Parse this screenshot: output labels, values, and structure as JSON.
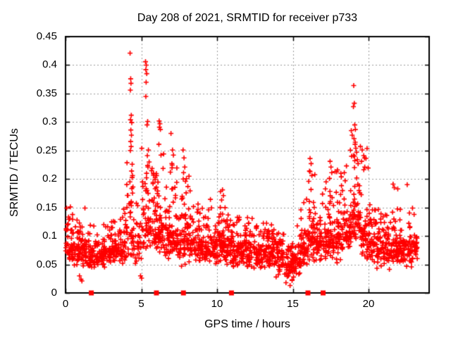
{
  "chart_data": {
    "type": "scatter",
    "title": "Day 208 of 2021, SRMTID for receiver p733",
    "xlabel": "GPS time / hours",
    "ylabel": "SRMTID / TECUs",
    "xlim": [
      0,
      24
    ],
    "ylim": [
      0,
      0.45
    ],
    "xticks": [
      0,
      5,
      10,
      15,
      20
    ],
    "xtick_labels": [
      "0",
      "5",
      "10",
      "15",
      "20"
    ],
    "yticks": [
      0,
      0.05,
      0.1,
      0.15,
      0.2,
      0.25,
      0.3,
      0.35,
      0.4,
      0.45
    ],
    "ytick_labels": [
      "0",
      "0.05",
      "0.1",
      "0.15",
      "0.2",
      "0.25",
      "0.3",
      "0.35",
      "0.4",
      "0.45"
    ],
    "grid": true,
    "grid_color": "#9a9a9a",
    "marker": {
      "shape": "plus",
      "color": "#ff0000",
      "size": 7
    },
    "zero_markers": {
      "shape": "filled-square",
      "color": "#ff0000",
      "y": 0,
      "x": [
        1.7,
        6.0,
        7.78,
        10.95,
        16.0,
        17.0
      ]
    },
    "seed": 20210727,
    "density_bins": [
      [
        0.0,
        45,
        0.04,
        0.11,
        0.152
      ],
      [
        0.5,
        45,
        0.045,
        0.105,
        0.13
      ],
      [
        1.0,
        40,
        0.045,
        0.1,
        0.15
      ],
      [
        1.5,
        40,
        0.04,
        0.09,
        0.12
      ],
      [
        2.0,
        40,
        0.04,
        0.085,
        0.11
      ],
      [
        2.5,
        42,
        0.045,
        0.09,
        0.12
      ],
      [
        3.0,
        42,
        0.05,
        0.1,
        0.13
      ],
      [
        3.5,
        40,
        0.05,
        0.105,
        0.15
      ],
      [
        4.0,
        42,
        0.055,
        0.15,
        0.24
      ],
      [
        4.5,
        30,
        0.05,
        0.12,
        0.18
      ],
      [
        5.0,
        40,
        0.065,
        0.16,
        0.27
      ],
      [
        5.5,
        45,
        0.07,
        0.16,
        0.24
      ],
      [
        6.0,
        48,
        0.05,
        0.15,
        0.25
      ],
      [
        6.5,
        48,
        0.05,
        0.14,
        0.2
      ],
      [
        7.0,
        48,
        0.05,
        0.14,
        0.23
      ],
      [
        7.5,
        45,
        0.045,
        0.13,
        0.22
      ],
      [
        8.0,
        45,
        0.05,
        0.12,
        0.19
      ],
      [
        8.5,
        42,
        0.05,
        0.11,
        0.16
      ],
      [
        9.0,
        45,
        0.05,
        0.11,
        0.15
      ],
      [
        9.5,
        45,
        0.045,
        0.11,
        0.17
      ],
      [
        10.0,
        48,
        0.05,
        0.12,
        0.18
      ],
      [
        10.5,
        45,
        0.045,
        0.11,
        0.15
      ],
      [
        11.0,
        45,
        0.04,
        0.1,
        0.14
      ],
      [
        11.5,
        45,
        0.045,
        0.1,
        0.13
      ],
      [
        12.0,
        45,
        0.04,
        0.1,
        0.14
      ],
      [
        12.5,
        45,
        0.04,
        0.095,
        0.12
      ],
      [
        13.0,
        45,
        0.04,
        0.095,
        0.13
      ],
      [
        13.5,
        45,
        0.035,
        0.09,
        0.12
      ],
      [
        14.0,
        45,
        0.03,
        0.085,
        0.11
      ],
      [
        14.5,
        45,
        0.02,
        0.075,
        0.1
      ],
      [
        15.0,
        45,
        0.03,
        0.08,
        0.12
      ],
      [
        15.5,
        45,
        0.04,
        0.1,
        0.17
      ],
      [
        16.0,
        48,
        0.05,
        0.13,
        0.22
      ],
      [
        16.5,
        45,
        0.05,
        0.12,
        0.18
      ],
      [
        17.0,
        45,
        0.05,
        0.13,
        0.2
      ],
      [
        17.5,
        45,
        0.05,
        0.14,
        0.22
      ],
      [
        18.0,
        45,
        0.055,
        0.14,
        0.21
      ],
      [
        18.5,
        45,
        0.065,
        0.155,
        0.26
      ],
      [
        19.0,
        48,
        0.06,
        0.17,
        0.29
      ],
      [
        19.5,
        45,
        0.05,
        0.14,
        0.255
      ],
      [
        20.0,
        45,
        0.05,
        0.12,
        0.18
      ],
      [
        20.5,
        45,
        0.04,
        0.11,
        0.15
      ],
      [
        21.0,
        42,
        0.04,
        0.1,
        0.14
      ],
      [
        21.5,
        42,
        0.04,
        0.11,
        0.185
      ],
      [
        22.0,
        42,
        0.045,
        0.11,
        0.15
      ],
      [
        22.5,
        40,
        0.04,
        0.105,
        0.15
      ],
      [
        23.0,
        20,
        0.05,
        0.105,
        0.14,
        0.25
      ]
    ],
    "outliers": [
      [
        4.26,
        0.421
      ],
      [
        4.3,
        0.376
      ],
      [
        4.32,
        0.368
      ],
      [
        4.28,
        0.356
      ],
      [
        4.34,
        0.312
      ],
      [
        4.29,
        0.304
      ],
      [
        4.37,
        0.299
      ],
      [
        4.31,
        0.286
      ],
      [
        4.35,
        0.277
      ],
      [
        4.3,
        0.266
      ],
      [
        4.33,
        0.257
      ],
      [
        4.28,
        0.25
      ],
      [
        4.4,
        0.226
      ],
      [
        4.36,
        0.214
      ],
      [
        4.42,
        0.206
      ],
      [
        4.25,
        0.195
      ],
      [
        4.45,
        0.186
      ],
      [
        5.28,
        0.406
      ],
      [
        5.33,
        0.4
      ],
      [
        5.3,
        0.392
      ],
      [
        5.36,
        0.385
      ],
      [
        5.32,
        0.37
      ],
      [
        5.3,
        0.345
      ],
      [
        5.42,
        0.301
      ],
      [
        5.38,
        0.295
      ],
      [
        5.47,
        0.251
      ],
      [
        5.4,
        0.241
      ],
      [
        5.52,
        0.23
      ],
      [
        5.44,
        0.221
      ],
      [
        5.35,
        0.21
      ],
      [
        6.18,
        0.302
      ],
      [
        6.23,
        0.297
      ],
      [
        6.2,
        0.291
      ],
      [
        6.26,
        0.287
      ],
      [
        6.16,
        0.261
      ],
      [
        6.3,
        0.242
      ],
      [
        6.96,
        0.28
      ],
      [
        7.06,
        0.251
      ],
      [
        7.12,
        0.242
      ],
      [
        7.02,
        0.227
      ],
      [
        6.92,
        0.212
      ],
      [
        7.76,
        0.251
      ],
      [
        7.82,
        0.237
      ],
      [
        7.87,
        0.221
      ],
      [
        7.79,
        0.211
      ],
      [
        7.92,
        0.196
      ],
      [
        8.15,
        0.205
      ],
      [
        10.36,
        0.181
      ],
      [
        10.42,
        0.171
      ],
      [
        16.14,
        0.236
      ],
      [
        16.21,
        0.227
      ],
      [
        16.1,
        0.214
      ],
      [
        16.26,
        0.206
      ],
      [
        16.05,
        0.196
      ],
      [
        17.46,
        0.231
      ],
      [
        17.52,
        0.221
      ],
      [
        17.57,
        0.211
      ],
      [
        17.42,
        0.201
      ],
      [
        18.4,
        0.211
      ],
      [
        18.46,
        0.197
      ],
      [
        18.86,
        0.285
      ],
      [
        18.92,
        0.277
      ],
      [
        18.88,
        0.24
      ],
      [
        19.02,
        0.364
      ],
      [
        19.06,
        0.333
      ],
      [
        19.0,
        0.327
      ],
      [
        19.09,
        0.295
      ],
      [
        19.13,
        0.287
      ],
      [
        19.04,
        0.271
      ],
      [
        19.11,
        0.261
      ],
      [
        19.16,
        0.254
      ],
      [
        19.21,
        0.247
      ],
      [
        19.0,
        0.241
      ],
      [
        19.26,
        0.234
      ],
      [
        19.31,
        0.227
      ],
      [
        19.07,
        0.22
      ],
      [
        19.58,
        0.251
      ],
      [
        19.68,
        0.241
      ],
      [
        19.54,
        0.231
      ],
      [
        19.75,
        0.221
      ],
      [
        21.62,
        0.191
      ],
      [
        22.55,
        0.19
      ],
      [
        0.32,
        0.151
      ],
      [
        1.28,
        0.149
      ],
      [
        0.92,
        0.03
      ],
      [
        1.02,
        0.024
      ],
      [
        1.08,
        0.021
      ],
      [
        4.95,
        0.03
      ],
      [
        5.02,
        0.026
      ],
      [
        14.55,
        0.018
      ],
      [
        14.82,
        0.013
      ],
      [
        14.95,
        0.022
      ],
      [
        15.05,
        0.028
      ],
      [
        13.9,
        0.028
      ]
    ]
  }
}
